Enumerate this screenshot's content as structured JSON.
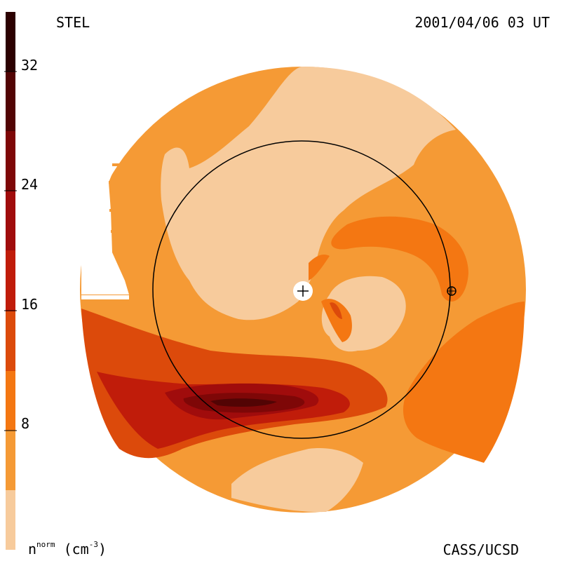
{
  "title": {
    "station": "STEL",
    "datetime": "2001/04/06 03 UT",
    "credit": "CASS/UCSD"
  },
  "colorbar": {
    "label_main": "n",
    "label_sup": "norm",
    "label_units_open": " (cm",
    "label_units_sup": "-3",
    "label_units_close": ")",
    "ticks": [
      "8",
      "16",
      "24",
      "32"
    ],
    "levels": [
      {
        "min": 0,
        "max": 4,
        "color": "#f7cb9c"
      },
      {
        "min": 4,
        "max": 8,
        "color": "#f59a35"
      },
      {
        "min": 8,
        "max": 12,
        "color": "#f47712"
      },
      {
        "min": 12,
        "max": 16,
        "color": "#dc4a0b"
      },
      {
        "min": 16,
        "max": 20,
        "color": "#c01c0a"
      },
      {
        "min": 20,
        "max": 24,
        "color": "#a00c0c"
      },
      {
        "min": 24,
        "max": 28,
        "color": "#7e0707"
      },
      {
        "min": 28,
        "max": 32,
        "color": "#520404"
      },
      {
        "min": 32,
        "max": 36,
        "color": "#2c0101"
      }
    ]
  },
  "icons": {
    "sun": "sun-plus-icon",
    "earth": "earth-marker-icon"
  }
}
